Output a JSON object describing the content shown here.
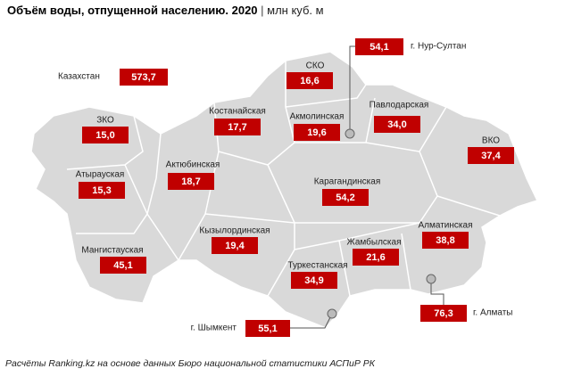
{
  "title": "Объём воды, отпущенной населению. 2020",
  "unit": "млн куб. м",
  "regions": [
    {
      "name": "Казахстан",
      "value": "573,7"
    },
    {
      "name": "ЗКО",
      "value": "15,0"
    },
    {
      "name": "Атырауская",
      "value": "15,3"
    },
    {
      "name": "Мангистауская",
      "value": "45,1"
    },
    {
      "name": "Актюбинская",
      "value": "18,7"
    },
    {
      "name": "Костанайская",
      "value": "17,7"
    },
    {
      "name": "СКО",
      "value": "16,6"
    },
    {
      "name": "Акмолинская",
      "value": "19,6"
    },
    {
      "name": "Павлодарская",
      "value": "34,0"
    },
    {
      "name": "ВКО",
      "value": "37,4"
    },
    {
      "name": "Карагандинская",
      "value": "54,2"
    },
    {
      "name": "Кызылординская",
      "value": "19,4"
    },
    {
      "name": "Жамбылская",
      "value": "21,6"
    },
    {
      "name": "Алматинская",
      "value": "38,8"
    },
    {
      "name": "Туркестанская",
      "value": "34,9"
    },
    {
      "name": "г. Шымкент",
      "value": "55,1"
    },
    {
      "name": "г. Алматы",
      "value": "76,3"
    },
    {
      "name": "г. Нур-Султан",
      "value": "54,1"
    }
  ],
  "source": "Расчёты Ranking.kz на основе данных Бюро национальной статистики АСПиР РК"
}
